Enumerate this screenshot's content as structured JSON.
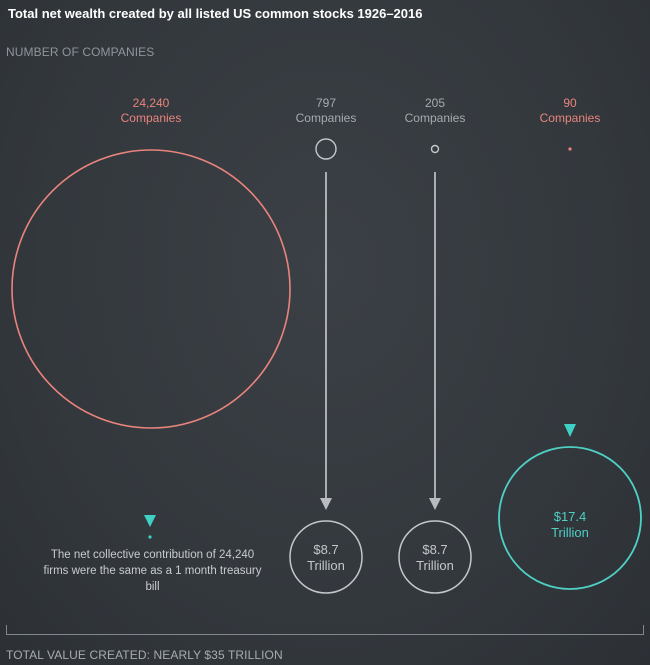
{
  "title": "Total net wealth created by all listed US common stocks 1926–2016",
  "subtitle": "NUMBER OF COMPANIES",
  "groups": [
    {
      "count": "24,240",
      "unit": "Companies",
      "value": "",
      "value_unit": ""
    },
    {
      "count": "797",
      "unit": "Companies",
      "value": "$8.7",
      "value_unit": "Trillion"
    },
    {
      "count": "205",
      "unit": "Companies",
      "value": "$8.7",
      "value_unit": "Trillion"
    },
    {
      "count": "90",
      "unit": "Companies",
      "value": "$17.4",
      "value_unit": "Trillion"
    }
  ],
  "note": "The net collective contribution of 24,240 firms were the same as a 1 month treasury bill",
  "total": "TOTAL VALUE CREATED: NEARLY $35 TRILLION",
  "colors": {
    "pink": "#e9847c",
    "teal": "#4fd0c4",
    "grey": "#a5abaf",
    "background": "#363b40"
  }
}
